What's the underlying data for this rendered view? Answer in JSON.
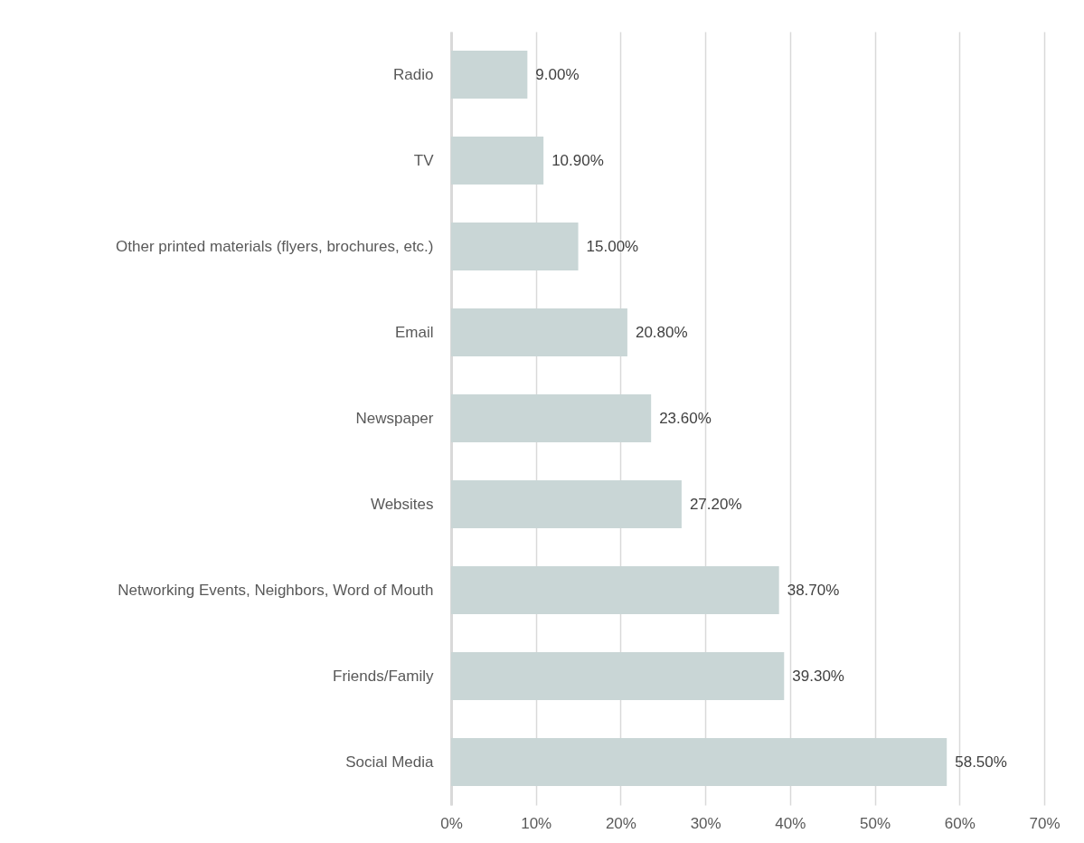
{
  "chart_data": {
    "type": "bar",
    "orientation": "horizontal",
    "categories": [
      "Radio",
      "TV",
      "Other printed materials (flyers, brochures, etc.)",
      "Email",
      "Newspaper",
      "Websites",
      "Networking Events, Neighbors, Word of Mouth",
      "Friends/Family",
      "Social Media"
    ],
    "values": [
      9.0,
      10.9,
      15.0,
      20.8,
      23.6,
      27.2,
      38.7,
      39.3,
      58.5
    ],
    "value_labels": [
      "9.00%",
      "10.90%",
      "15.00%",
      "20.80%",
      "23.60%",
      "27.20%",
      "38.70%",
      "39.30%",
      "58.50%"
    ],
    "color": "#c9d6d6",
    "xlim": [
      0,
      70
    ],
    "xticks": [
      {
        "value": 0,
        "label": "0%"
      },
      {
        "value": 10,
        "label": "10%"
      },
      {
        "value": 20,
        "label": "20%"
      },
      {
        "value": 30,
        "label": "30%"
      },
      {
        "value": 40,
        "label": "40%"
      },
      {
        "value": 50,
        "label": "50%"
      },
      {
        "value": 60,
        "label": "60%"
      },
      {
        "value": 70,
        "label": "70%"
      }
    ],
    "grid": "x"
  }
}
